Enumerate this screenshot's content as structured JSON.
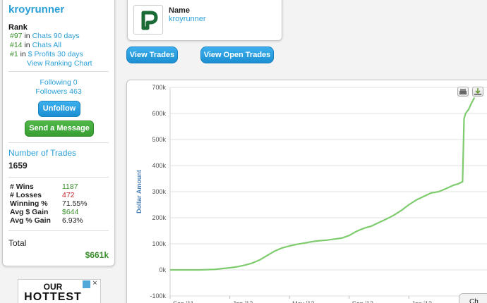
{
  "sidebar": {
    "username": "kroyrunner",
    "rank_label": "Rank",
    "ranks": [
      {
        "pos": "#97",
        "sep": "in",
        "name": "Chats 90 days"
      },
      {
        "pos": "#14",
        "sep": "in",
        "name": "Chats All"
      },
      {
        "pos": "#1",
        "sep": "in",
        "name": "$ Profits 30 days"
      }
    ],
    "view_ranking": "View Ranking Chart",
    "following": "Following 0",
    "followers": "Followers 463",
    "unfollow_label": "Unfollow",
    "message_label": "Send a Message",
    "trades_label": "Number of Trades",
    "trades_value": "1659",
    "stats": [
      {
        "key": "# Wins",
        "value": "1187",
        "color": "green"
      },
      {
        "key": "# Losses",
        "value": "472",
        "color": "red"
      },
      {
        "key": "Winning %",
        "value": "71.55%",
        "color": "plain"
      },
      {
        "key": "Avg $ Gain",
        "value": "$644",
        "color": "green"
      },
      {
        "key": "Avg % Gain",
        "value": "6.93%",
        "color": "plain"
      }
    ],
    "total_label": "Total",
    "total_value": "$661k"
  },
  "profile": {
    "logo_letter": "P",
    "name_label": "Name",
    "name_value": "kroyrunner"
  },
  "buttons": {
    "view_trades": "View Trades",
    "view_open_trades": "View Open Trades"
  },
  "ad": {
    "line1": "OUR",
    "line2": "HOTTEST"
  },
  "chart_tooltip_fragment": "Ch",
  "chart_data": {
    "type": "line",
    "title": "",
    "xlabel": "",
    "ylabel": "Dollar Amount",
    "ylim": [
      -100000,
      700000
    ],
    "yticks": [
      {
        "value": 700000,
        "label": "700k"
      },
      {
        "value": 600000,
        "label": "600k"
      },
      {
        "value": 500000,
        "label": "500k"
      },
      {
        "value": 400000,
        "label": "400k"
      },
      {
        "value": 300000,
        "label": "300k"
      },
      {
        "value": 200000,
        "label": "200k"
      },
      {
        "value": 100000,
        "label": "100k"
      },
      {
        "value": 0,
        "label": "0k"
      },
      {
        "value": -100000,
        "label": "-100k"
      }
    ],
    "xticks": [
      "Sep '11",
      "Jan '12",
      "May '12",
      "Sep '12",
      "Jan '13",
      "May '1"
    ],
    "xrange_months": [
      0,
      21
    ],
    "grid": "horizontal",
    "color": "#7fcc6f",
    "series": [
      {
        "x": [
          0,
          1,
          2,
          3,
          3.5,
          4,
          4.5,
          5,
          5.5,
          6,
          6.5,
          7,
          7.5,
          8,
          8.5,
          9,
          9.5,
          10,
          10.5,
          11,
          11.5,
          12,
          12.5,
          13,
          13.5,
          14,
          14.5,
          15,
          15.5,
          16,
          16.5,
          17,
          17.5,
          18,
          18.5,
          19,
          19.3,
          19.6,
          19.7,
          19.8,
          20.0,
          20.2,
          20.4
        ],
        "y": [
          0,
          0,
          0,
          2000,
          5000,
          8000,
          12000,
          18000,
          26000,
          38000,
          55000,
          72000,
          84000,
          92000,
          98000,
          103000,
          108000,
          112000,
          114000,
          118000,
          122000,
          132000,
          148000,
          160000,
          168000,
          182000,
          195000,
          210000,
          228000,
          250000,
          268000,
          282000,
          295000,
          300000,
          312000,
          325000,
          330000,
          338000,
          580000,
          600000,
          615000,
          640000,
          661000
        ]
      }
    ]
  }
}
